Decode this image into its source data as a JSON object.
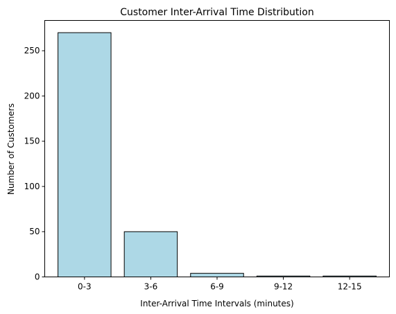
{
  "chart_data": {
    "type": "bar",
    "title": "Customer Inter-Arrival Time Distribution",
    "xlabel": "Inter-Arrival Time Intervals (minutes)",
    "ylabel": "Number of Customers",
    "categories": [
      "0-3",
      "3-6",
      "6-9",
      "9-12",
      "12-15"
    ],
    "values": [
      270,
      50,
      4,
      1,
      1
    ],
    "ylim": [
      0,
      283.5
    ],
    "yticks": [
      0,
      50,
      100,
      150,
      200,
      250
    ],
    "grid": false,
    "bar_color": "#add8e6",
    "edge_color": "#000000"
  }
}
